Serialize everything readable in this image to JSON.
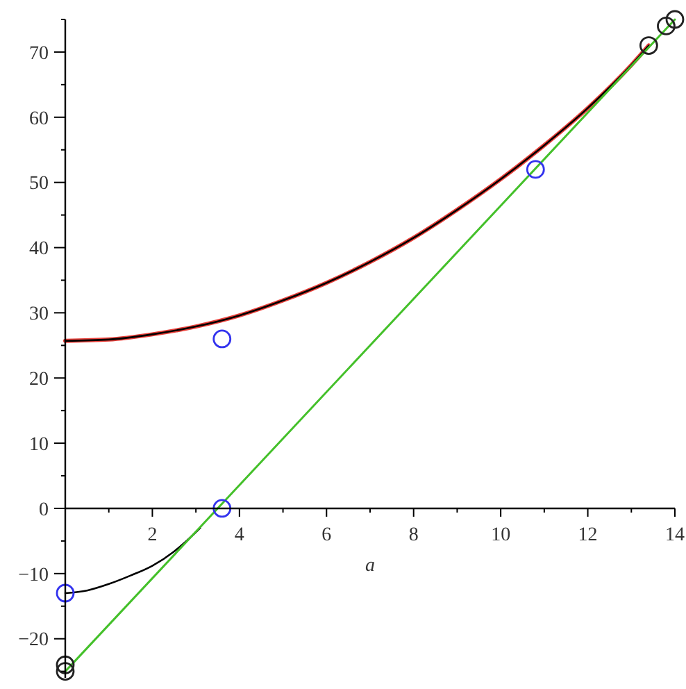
{
  "chart_data": {
    "type": "line",
    "xlabel": "a",
    "xlim": [
      0,
      14
    ],
    "ylim": [
      -26,
      75
    ],
    "xticks": [
      {
        "value": 1,
        "label": null
      },
      2,
      {
        "value": 3,
        "label": null
      },
      4,
      {
        "value": 5,
        "label": null
      },
      6,
      {
        "value": 7,
        "label": null
      },
      8,
      {
        "value": 9,
        "label": null
      },
      10,
      {
        "value": 11,
        "label": null
      },
      12,
      {
        "value": 13,
        "label": null
      },
      14
    ],
    "yticks": [
      {
        "value": -25,
        "label": null
      },
      {
        "value": -20,
        "label": "−20"
      },
      {
        "value": -15,
        "label": null
      },
      {
        "value": -10,
        "label": "−10"
      },
      {
        "value": -5,
        "label": null
      },
      0,
      {
        "value": 5,
        "label": null
      },
      10,
      {
        "value": 15,
        "label": null
      },
      20,
      {
        "value": 25,
        "label": null
      },
      30,
      {
        "value": 35,
        "label": null
      },
      40,
      {
        "value": 45,
        "label": null
      },
      50,
      {
        "value": 55,
        "label": null
      },
      60,
      {
        "value": 65,
        "label": null
      },
      70,
      {
        "value": 75,
        "label": null
      }
    ],
    "series": [
      {
        "color": "#e8403a",
        "x": [
          0,
          1,
          2,
          3,
          4,
          5,
          6,
          7,
          8,
          9,
          10,
          11,
          12,
          13,
          13.4
        ],
        "values": [
          25.7,
          25.9,
          26.7,
          27.9,
          29.6,
          31.9,
          34.6,
          37.8,
          41.5,
          45.8,
          50.5,
          55.7,
          61.4,
          68,
          71
        ]
      },
      {
        "color": "#000000",
        "x": [
          0,
          1,
          2,
          3,
          4,
          5,
          6,
          7,
          8,
          9,
          10,
          11,
          12,
          13,
          13.4
        ],
        "values": [
          25.7,
          25.9,
          26.7,
          27.9,
          29.6,
          31.9,
          34.6,
          37.8,
          41.5,
          45.8,
          50.5,
          55.7,
          61.4,
          68,
          71
        ]
      },
      {
        "color": "#000000",
        "x": [
          0,
          0.5,
          1,
          1.5,
          2,
          2.5,
          2.8,
          3.1
        ],
        "values": [
          -13,
          -12.6,
          -11.6,
          -10.3,
          -8.8,
          -6.6,
          -4.9,
          -3
        ]
      },
      {
        "color": "#44c02a",
        "x": [
          0,
          14
        ],
        "values": [
          -25,
          75
        ]
      },
      {
        "type": "scatter",
        "color": "#3333ee",
        "marker": "circle",
        "x": [
          0,
          3.6,
          3.6,
          10.8
        ],
        "values": [
          -13,
          0,
          26,
          52
        ]
      },
      {
        "type": "scatter",
        "color": "#222222",
        "marker": "circle",
        "x": [
          0,
          0,
          13.4,
          13.8,
          14
        ],
        "values": [
          -24,
          -25,
          71,
          74,
          75
        ]
      }
    ]
  }
}
